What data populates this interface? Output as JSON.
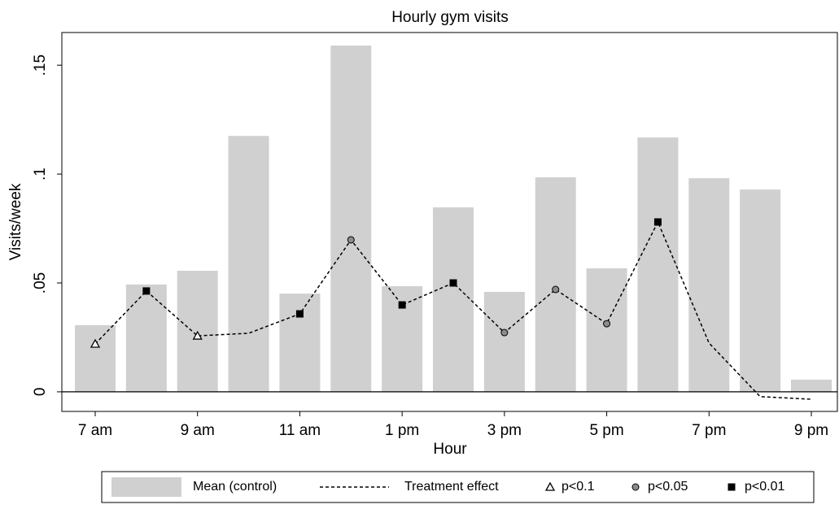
{
  "chart_data": {
    "type": "bar",
    "title": "Hourly gym visits",
    "x_label": "Hour",
    "y_label": "Visits/week",
    "categories": [
      "7 am",
      null,
      "9 am",
      null,
      "11 am",
      null,
      "1 pm",
      null,
      "3 pm",
      null,
      "5 pm",
      null,
      "7 pm",
      null,
      "9 pm"
    ],
    "series": [
      {
        "name": "Mean (control)",
        "type": "bar",
        "color": "#d0d0d0",
        "values": [
          0.0306,
          0.0493,
          0.0556,
          0.1175,
          0.0451,
          0.159,
          0.0485,
          0.0847,
          0.0459,
          0.0985,
          0.0567,
          0.1168,
          0.0981,
          0.0929,
          0.0056
        ]
      },
      {
        "name": "Treatment effect",
        "type": "line",
        "color": "#000000",
        "dashed": true,
        "values": [
          0.022,
          0.0463,
          0.0257,
          0.0269,
          0.0358,
          0.0698,
          0.0399,
          0.05,
          0.0272,
          0.047,
          0.0313,
          0.078,
          0.0224,
          -0.0022,
          -0.0034
        ]
      },
      {
        "name": "p<0.1",
        "type": "scatter",
        "marker": "triangle",
        "color": "#ffffff",
        "values": [
          0.022,
          null,
          0.0257,
          null,
          null,
          null,
          null,
          null,
          null,
          null,
          null,
          null,
          null,
          null,
          null
        ]
      },
      {
        "name": "p<0.05",
        "type": "scatter",
        "marker": "circle",
        "color": "#8c8c8c",
        "values": [
          null,
          null,
          null,
          null,
          null,
          0.0698,
          null,
          null,
          0.0272,
          0.047,
          0.0313,
          null,
          null,
          null,
          null
        ]
      },
      {
        "name": "p<0.01",
        "type": "scatter",
        "marker": "square",
        "color": "#000000",
        "values": [
          null,
          0.0463,
          null,
          null,
          0.0358,
          null,
          0.0399,
          0.05,
          null,
          null,
          null,
          0.078,
          null,
          null,
          null
        ]
      }
    ],
    "ylim": [
      -0.009,
      0.165
    ],
    "yticks": [
      0,
      {
        "value": 0.05,
        "label": ".05"
      },
      {
        "value": 0.1,
        "label": ".1"
      },
      {
        "value": 0.15,
        "label": ".15"
      }
    ],
    "zero_line": true,
    "legend": "bottom"
  }
}
